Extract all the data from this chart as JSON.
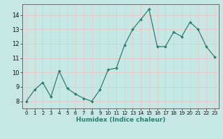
{
  "x": [
    0,
    1,
    2,
    3,
    4,
    5,
    6,
    7,
    8,
    9,
    10,
    11,
    12,
    13,
    14,
    15,
    16,
    17,
    18,
    19,
    20,
    21,
    22,
    23
  ],
  "y": [
    8.0,
    8.8,
    9.3,
    8.3,
    10.1,
    8.9,
    8.5,
    8.2,
    8.0,
    8.8,
    10.2,
    10.3,
    11.9,
    13.0,
    13.7,
    14.4,
    11.8,
    11.8,
    12.8,
    12.5,
    13.5,
    13.0,
    11.8,
    11.1
  ],
  "line_color": "#2e7d6e",
  "marker": "D",
  "marker_size": 2.0,
  "bg_color": "#c5e8e5",
  "grid_color": "#e8c8c8",
  "xlabel": "Humidex (Indice chaleur)",
  "xlim": [
    -0.5,
    23.5
  ],
  "ylim": [
    7.5,
    14.75
  ],
  "yticks": [
    8,
    9,
    10,
    11,
    12,
    13,
    14
  ],
  "xticks": [
    0,
    1,
    2,
    3,
    4,
    5,
    6,
    7,
    8,
    9,
    10,
    11,
    12,
    13,
    14,
    15,
    16,
    17,
    18,
    19,
    20,
    21,
    22,
    23
  ]
}
